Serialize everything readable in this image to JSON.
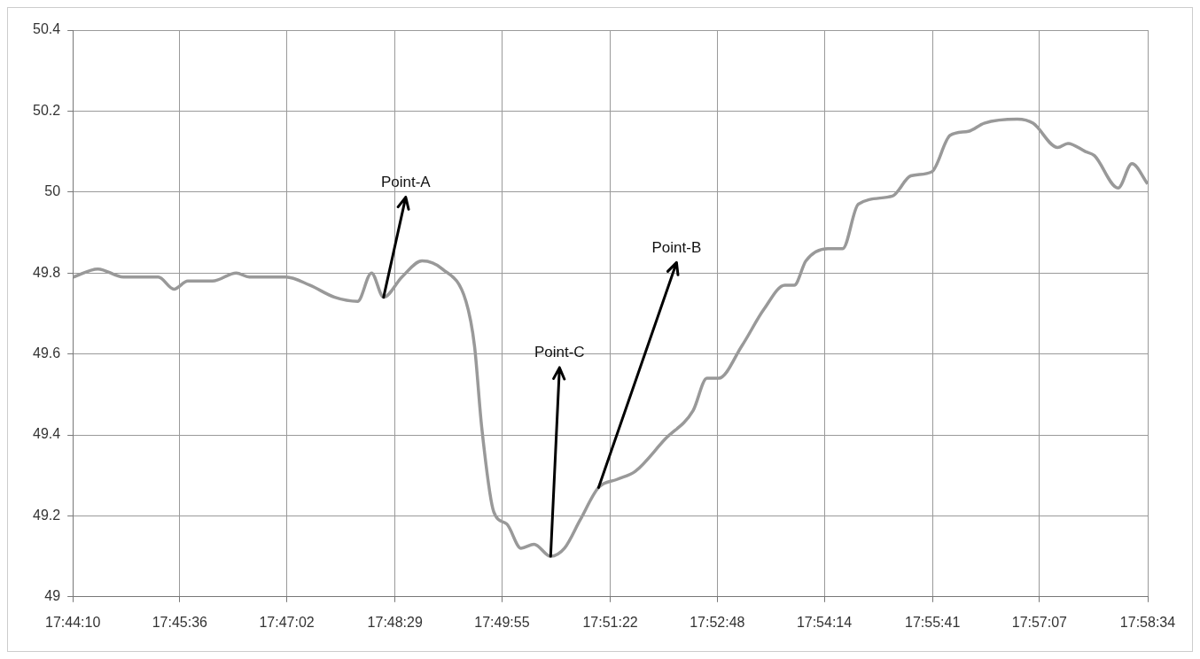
{
  "chart_data": {
    "type": "line",
    "x": [
      17.7362,
      17.7417,
      17.7474,
      17.7552,
      17.7587,
      17.7618,
      17.7673,
      17.7726,
      17.7755,
      17.7837,
      17.789,
      17.7946,
      17.7997,
      17.8028,
      17.8055,
      17.8096,
      17.8141,
      17.8186,
      17.8239,
      17.8258,
      17.8274,
      17.8301,
      17.833,
      17.8362,
      17.8391,
      17.8428,
      17.8459,
      17.8494,
      17.8535,
      17.8576,
      17.8617,
      17.8684,
      17.8746,
      17.8777,
      17.8803,
      17.8855,
      17.8904,
      17.8951,
      17.8972,
      17.8998,
      17.9047,
      17.908,
      17.9115,
      17.9191,
      17.9232,
      17.9279,
      17.932,
      17.9361,
      17.9396,
      17.947,
      17.9505,
      17.956,
      17.9583,
      17.9622,
      17.9642,
      17.9695,
      17.9726,
      17.9761
    ],
    "series": [
      {
        "color": "#999999",
        "values": [
          49.79,
          49.81,
          49.79,
          49.79,
          49.76,
          49.78,
          49.78,
          49.8,
          49.79,
          49.79,
          49.77,
          49.74,
          49.73,
          49.8,
          49.74,
          49.79,
          49.83,
          49.81,
          49.73,
          49.62,
          49.42,
          49.21,
          49.18,
          49.12,
          49.13,
          49.1,
          49.12,
          49.19,
          49.27,
          49.29,
          49.31,
          49.39,
          49.46,
          49.54,
          49.54,
          49.62,
          49.71,
          49.77,
          49.77,
          49.83,
          49.86,
          49.86,
          49.97,
          49.99,
          50.04,
          50.05,
          50.14,
          50.15,
          50.17,
          50.18,
          50.17,
          50.11,
          50.12,
          50.1,
          50.09,
          50.01,
          50.07,
          50.02
        ]
      }
    ],
    "xlim": [
      17.736111,
      17.976111
    ],
    "xticks": [
      {
        "value": 17.736111,
        "label": "17:44:10"
      },
      {
        "value": 17.76,
        "label": "17:45:36"
      },
      {
        "value": 17.783889,
        "label": "17:47:02"
      },
      {
        "value": 17.808056,
        "label": "17:48:29"
      },
      {
        "value": 17.831944,
        "label": "17:49:55"
      },
      {
        "value": 17.856111,
        "label": "17:51:22"
      },
      {
        "value": 17.88,
        "label": "17:52:48"
      },
      {
        "value": 17.903889,
        "label": "17:54:14"
      },
      {
        "value": 17.928056,
        "label": "17:55:41"
      },
      {
        "value": 17.951944,
        "label": "17:57:07"
      },
      {
        "value": 17.976111,
        "label": "17:58:34"
      }
    ],
    "ylim": [
      49,
      50.4
    ],
    "yticks": [
      49,
      49.2,
      49.4,
      49.6,
      49.8,
      50,
      50.2,
      50.4
    ],
    "grid": true,
    "legend": false,
    "marker": "none",
    "line_style": "solid",
    "annotations": [
      {
        "text": "Point-A",
        "x": 17.8055,
        "y": 49.74
      },
      {
        "text": "Point-C",
        "x": 17.8428,
        "y": 49.1
      },
      {
        "text": "Point-B",
        "x": 17.8535,
        "y": 49.27
      }
    ]
  }
}
